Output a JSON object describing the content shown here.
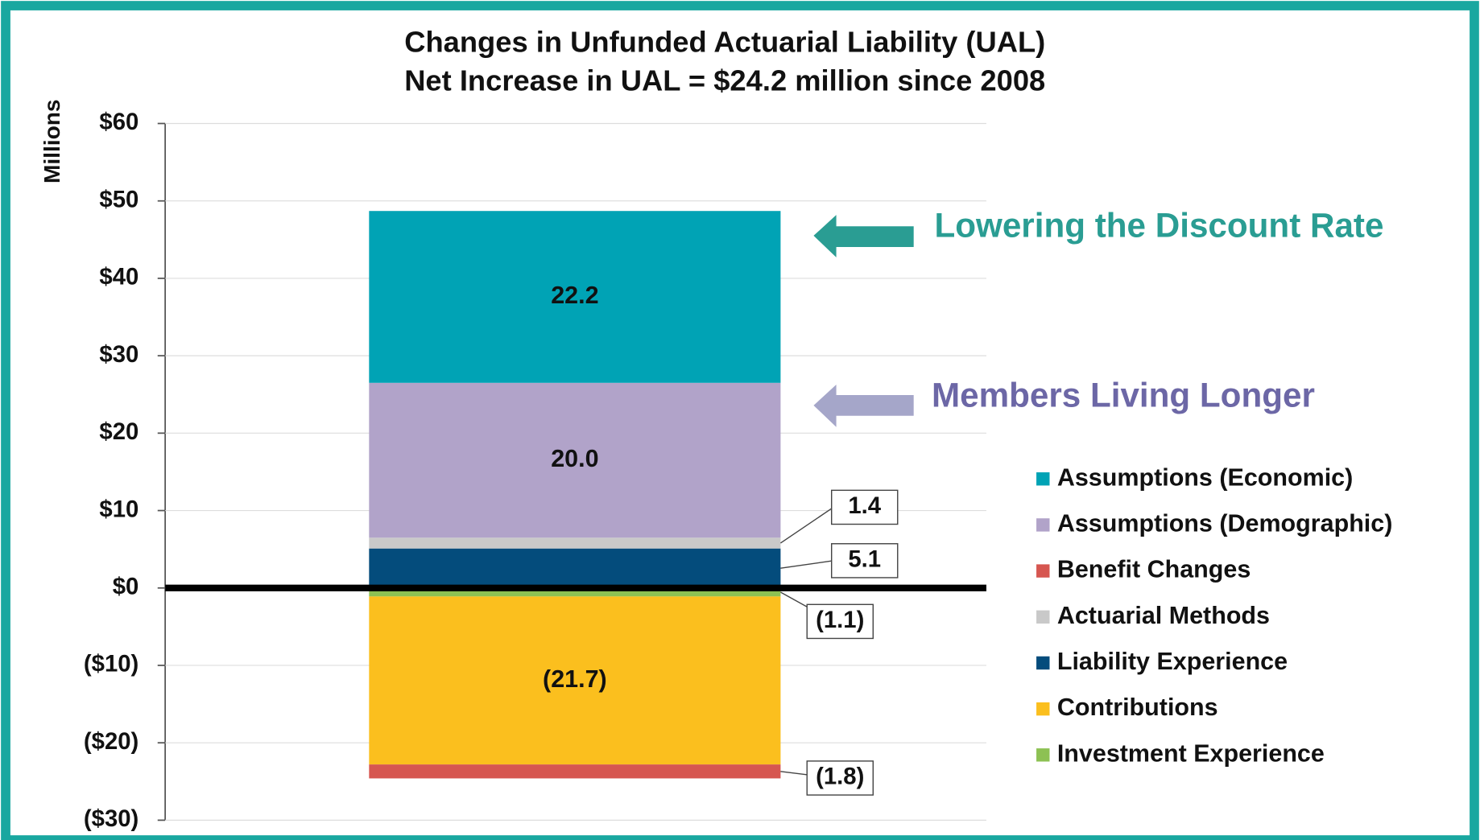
{
  "chart_data": {
    "type": "stacked_bar",
    "title": "Changes in Unfunded Actuarial Liability (UAL)",
    "subtitle": "Net Increase in UAL = $24.2 million since 2008",
    "y_label": "Millions",
    "categories": [
      null
    ],
    "series": [
      {
        "name": "Assumptions (Economic)",
        "color": "#00a3b5",
        "values": [
          22.2
        ],
        "value_labels": [
          "22.2"
        ]
      },
      {
        "name": "Assumptions (Demographic)",
        "color": "#b1a3c9",
        "values": [
          20.0
        ],
        "value_labels": [
          "20.0"
        ]
      },
      {
        "name": "Benefit Changes",
        "color": "#d65650",
        "values": [
          -1.8
        ],
        "value_labels": [
          "(1.8)"
        ]
      },
      {
        "name": "Actuarial Methods",
        "color": "#c9c9c9",
        "values": [
          1.4
        ],
        "value_labels": [
          "1.4"
        ]
      },
      {
        "name": "Liability Experience",
        "color": "#044c7c",
        "values": [
          5.1
        ],
        "value_labels": [
          "5.1"
        ]
      },
      {
        "name": "Contributions",
        "color": "#fbbf1e",
        "values": [
          -21.7
        ],
        "value_labels": [
          "(21.7)"
        ]
      },
      {
        "name": "Investment Experience",
        "color": "#8dc153",
        "values": [
          -1.1
        ],
        "value_labels": [
          "(1.1)"
        ]
      }
    ],
    "ylim": [
      -30,
      60
    ],
    "yticks": [
      {
        "value": -30,
        "label": "($30)"
      },
      {
        "value": -20,
        "label": "($20)"
      },
      {
        "value": -10,
        "label": "($10)"
      },
      {
        "value": 0,
        "label": "$0"
      },
      {
        "value": 10,
        "label": "$10"
      },
      {
        "value": 20,
        "label": "$20"
      },
      {
        "value": 30,
        "label": "$30"
      },
      {
        "value": 40,
        "label": "$40"
      },
      {
        "value": 50,
        "label": "$50"
      },
      {
        "value": 60,
        "label": "$60"
      }
    ],
    "grid": true,
    "legend": "right",
    "annotations": [
      {
        "text": "Lowering the Discount Rate",
        "color": "#2a9d93"
      },
      {
        "text": "Members Living Longer",
        "color": "#6c67a6"
      }
    ]
  }
}
